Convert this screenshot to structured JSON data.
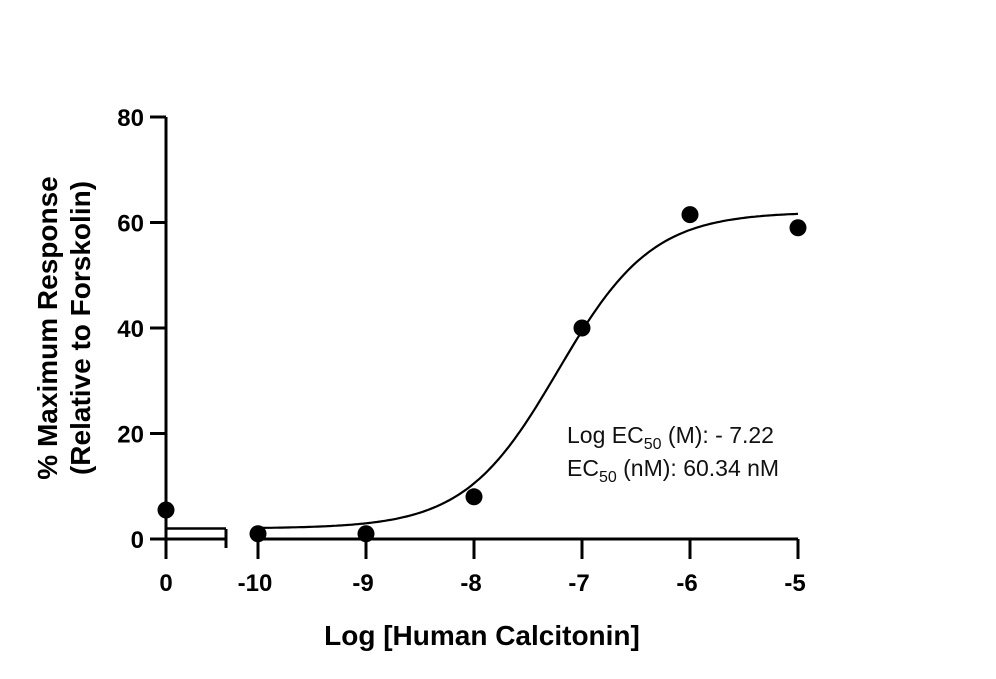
{
  "chart_data": {
    "type": "scatter",
    "title": "",
    "xlabel": "Log [Human Calcitonin]",
    "ylabel_line1": "% Maximum Response",
    "ylabel_line2": "(Relative to Forskolin)",
    "ylim": [
      0,
      80
    ],
    "yticks": [
      0,
      20,
      40,
      60,
      80
    ],
    "ytick_labels": [
      "0",
      "20",
      "40",
      "60",
      "80"
    ],
    "x_segments": [
      {
        "name": "baseline",
        "ticks": [
          0
        ],
        "tick_labels": [
          "0"
        ]
      },
      {
        "name": "log-concentration",
        "range": [
          -10,
          -5
        ],
        "ticks": [
          -10,
          -9,
          -8,
          -7,
          -6,
          -5
        ],
        "tick_labels": [
          "-10",
          "-9",
          "-8",
          "-7",
          "-6",
          "-5"
        ]
      }
    ],
    "series": [
      {
        "name": "Human Calcitonin",
        "marker": "filled-circle",
        "x": [
          0,
          -10,
          -9,
          -8,
          -7,
          -6,
          -5
        ],
        "y": [
          5.5,
          1,
          1,
          8,
          40,
          61.5,
          59
        ]
      }
    ],
    "fit_curve": {
      "model": "sigmoidal dose-response",
      "bottom": 2,
      "top": 62,
      "log_ec50": -7.22,
      "hill_slope": 1.0,
      "x_range": [
        -10,
        -5
      ]
    },
    "baseline_line": {
      "y": 2,
      "segment": "baseline"
    },
    "grid": false,
    "legend": null,
    "annotations": [
      {
        "label_main": "Log EC",
        "label_sub": "50",
        "label_rest": " (M): - 7.22"
      },
      {
        "label_main": "EC",
        "label_sub": "50",
        "label_rest": " (nM): 60.34 nM"
      }
    ]
  }
}
